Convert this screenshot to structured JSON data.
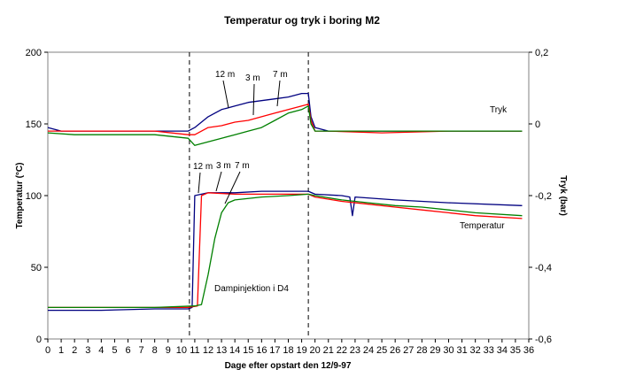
{
  "chart_data": {
    "type": "line",
    "title": "Temperatur og tryk i boring M2",
    "xlabel": "Dage efter opstart den 12/9-97",
    "ylabel_left": "Temperatur (°C)",
    "ylabel_right": "Tryk (bar)",
    "xlim": [
      0,
      36
    ],
    "ylim_left": [
      0,
      200
    ],
    "ylim_right": [
      -0.6,
      0.2
    ],
    "x_ticks": [
      "0",
      "1",
      "2",
      "3",
      "4",
      "5",
      "6",
      "7",
      "8",
      "9",
      "10",
      "11",
      "12",
      "13",
      "14",
      "15",
      "16",
      "17",
      "18",
      "19",
      "20",
      "21",
      "22",
      "23",
      "24",
      "25",
      "26",
      "27",
      "28",
      "29",
      "30",
      "31",
      "32",
      "33",
      "34",
      "35",
      "36"
    ],
    "y_left_ticks": [
      "0",
      "50",
      "100",
      "150",
      "200"
    ],
    "y_right_ticks": [
      "-0,6",
      "-0,4",
      "-0,2",
      "0",
      "0,2"
    ],
    "grid": false,
    "vlines": [
      10.6,
      19.5
    ],
    "annotations": {
      "tryk_depths": [
        "12 m",
        "3 m",
        "7 m"
      ],
      "temp_depths": [
        "12 m",
        "3 m",
        "7 m"
      ],
      "tryk_label": "Tryk",
      "temp_label": "Temperatur",
      "injection_label": "Dampinjektion i D4"
    },
    "series": [
      {
        "color": "#000080",
        "axis": "left",
        "x": [
          0,
          4,
          8,
          10.5,
          10.8,
          11.0,
          12,
          14,
          16,
          18,
          19.5,
          20,
          22,
          22.6,
          22.8,
          23,
          26,
          30,
          35.5
        ],
        "y": [
          20,
          20,
          21,
          21,
          22,
          100,
          102,
          102,
          103,
          103,
          103,
          101,
          100,
          99,
          86,
          99,
          97,
          95,
          93
        ]
      },
      {
        "color": "#ff0000",
        "axis": "left",
        "x": [
          0,
          4,
          8,
          10.5,
          11.2,
          11.5,
          12,
          14,
          16,
          18,
          19.5,
          20,
          22,
          24,
          26,
          28,
          30,
          32,
          35.5
        ],
        "y": [
          22,
          22,
          22,
          22,
          23,
          100,
          102,
          101,
          101,
          101,
          101,
          99,
          96,
          94,
          92,
          90,
          88,
          86,
          84
        ]
      },
      {
        "color": "#008000",
        "axis": "left",
        "x": [
          0,
          4,
          8,
          11,
          11.5,
          12,
          12.5,
          13,
          13.5,
          14,
          16,
          18,
          19.5,
          20,
          22,
          24,
          26,
          28,
          30,
          32,
          35.5
        ],
        "y": [
          22,
          22,
          22,
          23,
          24,
          45,
          70,
          88,
          95,
          97,
          99,
          100,
          101,
          100,
          97,
          95,
          93,
          92,
          90,
          88,
          86
        ]
      },
      {
        "color": "#000080",
        "axis": "right",
        "x": [
          0,
          1,
          3,
          7,
          9,
          10.5,
          11,
          12,
          13,
          14,
          15,
          16,
          17,
          18,
          19,
          19.5,
          19.7,
          20,
          21,
          25,
          30,
          35.5
        ],
        "y": [
          -0.01,
          -0.02,
          -0.02,
          -0.02,
          -0.02,
          -0.02,
          -0.01,
          0.02,
          0.04,
          0.05,
          0.06,
          0.065,
          0.07,
          0.075,
          0.085,
          0.085,
          0.02,
          -0.01,
          -0.02,
          -0.02,
          -0.02,
          -0.02
        ]
      },
      {
        "color": "#ff0000",
        "axis": "right",
        "x": [
          0,
          2,
          5,
          8,
          10.5,
          11,
          12,
          13,
          14,
          15,
          16,
          17,
          18,
          19,
          19.5,
          19.7,
          20,
          21,
          25,
          30,
          35.5
        ],
        "y": [
          -0.02,
          -0.02,
          -0.02,
          -0.02,
          -0.03,
          -0.03,
          -0.01,
          -0.005,
          0.005,
          0.01,
          0.02,
          0.03,
          0.04,
          0.05,
          0.055,
          0.01,
          -0.02,
          -0.02,
          -0.025,
          -0.02,
          -0.02
        ]
      },
      {
        "color": "#008000",
        "axis": "right",
        "x": [
          0,
          2,
          5,
          8,
          10.5,
          11,
          12,
          13,
          14,
          15,
          16,
          17,
          18,
          19,
          19.5,
          19.7,
          20,
          21,
          25,
          30,
          35.5
        ],
        "y": [
          -0.025,
          -0.03,
          -0.03,
          -0.03,
          -0.04,
          -0.06,
          -0.05,
          -0.04,
          -0.03,
          -0.02,
          -0.01,
          0.01,
          0.03,
          0.04,
          0.05,
          0.0,
          -0.02,
          -0.02,
          -0.02,
          -0.02,
          -0.02
        ]
      }
    ]
  }
}
